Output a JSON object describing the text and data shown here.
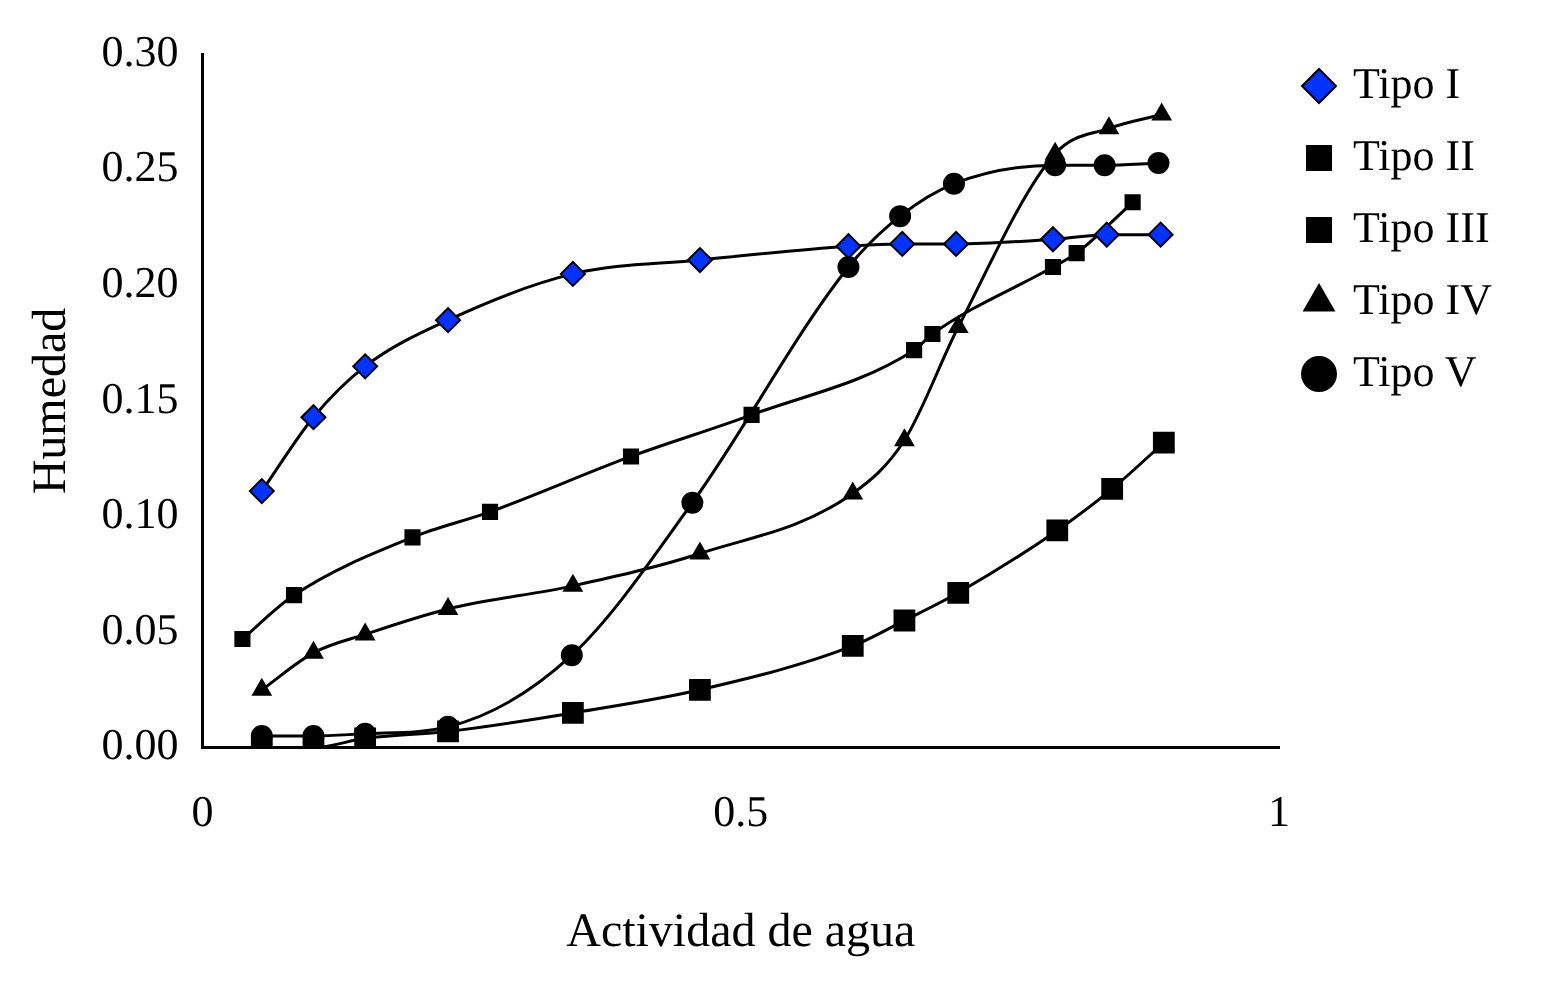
{
  "chart_data": {
    "type": "line",
    "xlabel": "Actividad de agua",
    "ylabel": "Humedad",
    "xlim": [
      0,
      1
    ],
    "xticks": [
      0,
      0.5,
      1
    ],
    "ylim": [
      0,
      0.3
    ],
    "yticks": [
      {
        "value": 0,
        "label": "0.00"
      },
      {
        "value": 0.05,
        "label": "0.05"
      },
      {
        "value": 0.1,
        "label": "0.10"
      },
      {
        "value": 0.15,
        "label": "0.15"
      },
      {
        "value": 0.2,
        "label": "0.20"
      },
      {
        "value": 0.25,
        "label": "0.25"
      },
      {
        "value": 0.3,
        "label": "0.30"
      }
    ],
    "grid": false,
    "legend": "right",
    "series": [
      {
        "name": "Tipo I",
        "color": "#0033ff",
        "marker": "diamond",
        "x": [
          0.055,
          0.103,
          0.151,
          0.228,
          0.344,
          0.462,
          0.6,
          0.65,
          0.7,
          0.79,
          0.84,
          0.89
        ],
        "values": [
          0.111,
          0.143,
          0.165,
          0.185,
          0.205,
          0.211,
          0.217,
          0.218,
          0.218,
          0.22,
          0.222,
          0.222
        ]
      },
      {
        "name": "Tipo II",
        "color": "#000000",
        "marker": "square",
        "x": [
          0.037,
          0.085,
          0.195,
          0.267,
          0.398,
          0.51,
          0.661,
          0.678,
          0.79,
          0.812,
          0.864
        ],
        "values": [
          0.047,
          0.066,
          0.091,
          0.102,
          0.126,
          0.144,
          0.172,
          0.179,
          0.208,
          0.214,
          0.236
        ]
      },
      {
        "name": "Tipo III",
        "color": "#000000",
        "marker": "square",
        "x": [
          0.055,
          0.103,
          0.151,
          0.228,
          0.344,
          0.462,
          0.604,
          0.652,
          0.702,
          0.794,
          0.845,
          0.893
        ],
        "values": [
          0,
          0,
          0.004,
          0.007,
          0.015,
          0.025,
          0.044,
          0.055,
          0.067,
          0.094,
          0.112,
          0.132
        ]
      },
      {
        "name": "Tipo IV",
        "color": "#000000",
        "marker": "triangle",
        "x": [
          0.055,
          0.103,
          0.151,
          0.228,
          0.344,
          0.462,
          0.604,
          0.652,
          0.702,
          0.792,
          0.842,
          0.891
        ],
        "values": [
          0.025,
          0.041,
          0.049,
          0.06,
          0.07,
          0.084,
          0.11,
          0.133,
          0.182,
          0.257,
          0.268,
          0.274
        ]
      },
      {
        "name": "Tipo V",
        "color": "#000000",
        "marker": "circle",
        "x": [
          0.055,
          0.103,
          0.151,
          0.228,
          0.343,
          0.455,
          0.6,
          0.648,
          0.698,
          0.792,
          0.838,
          0.888
        ],
        "values": [
          0.005,
          0.005,
          0.006,
          0.009,
          0.04,
          0.106,
          0.208,
          0.23,
          0.244,
          0.252,
          0.252,
          0.253
        ]
      }
    ]
  }
}
